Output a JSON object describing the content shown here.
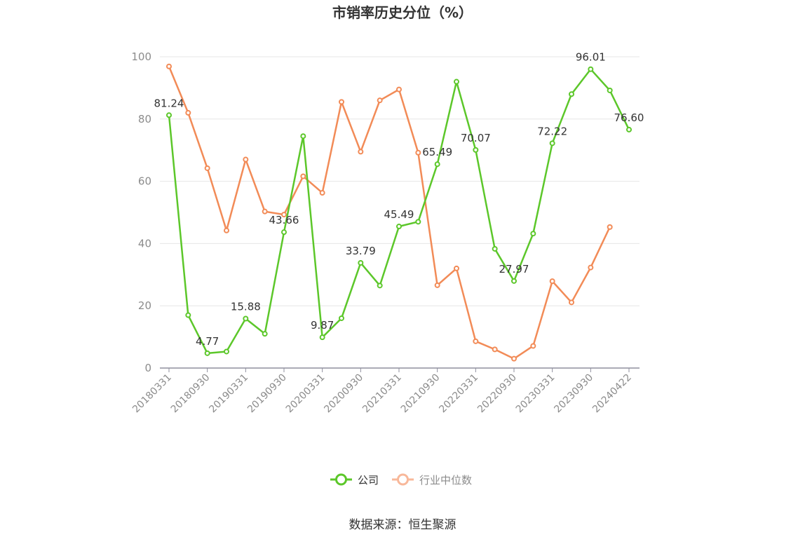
{
  "chart_data": {
    "type": "line",
    "title": "市销率历史分位（%）",
    "xlabel": "",
    "ylabel": "",
    "ylim": [
      0,
      100
    ],
    "yticks": [
      "0",
      "20",
      "40",
      "60",
      "80",
      "100"
    ],
    "categories": [
      "20180331",
      "20180630",
      "20180930",
      "20181231",
      "20190331",
      "20190630",
      "20190930",
      "20191231",
      "20200331",
      "20200630",
      "20200930",
      "20201231",
      "20210331",
      "20210630",
      "20210930",
      "20211231",
      "20220331",
      "20220630",
      "20220930",
      "20221231",
      "20230331",
      "20230630",
      "20230930",
      "20231231",
      "20240422"
    ],
    "xtick_labels": [
      "20180331",
      "20180930",
      "20190331",
      "20190930",
      "20200331",
      "20200930",
      "20210331",
      "20210930",
      "20220331",
      "20220930",
      "20230331",
      "20230930",
      "20240422"
    ],
    "series": [
      {
        "name": "公司",
        "color": "#5cc72a",
        "values": [
          81.24,
          17.0,
          4.77,
          5.3,
          15.88,
          11.0,
          43.66,
          74.5,
          9.87,
          16.0,
          33.79,
          26.5,
          45.49,
          47.0,
          65.49,
          92.0,
          70.07,
          38.3,
          27.97,
          43.2,
          72.22,
          88.0,
          96.01,
          89.2,
          76.6
        ],
        "data_labels": {
          "0": "81.24",
          "2": "4.77",
          "4": "15.88",
          "6": "43.66",
          "8": "9.87",
          "10": "33.79",
          "12": "45.49",
          "14": "65.49",
          "16": "70.07",
          "18": "27.97",
          "20": "72.22",
          "22": "96.01",
          "24": "76.60"
        }
      },
      {
        "name": "行业中位数",
        "color": "#f28b57",
        "values": [
          96.9,
          82.0,
          64.2,
          44.2,
          67.0,
          50.3,
          49.3,
          61.6,
          56.3,
          85.5,
          69.5,
          86.0,
          89.5,
          69.2,
          26.6,
          32.0,
          8.6,
          6.0,
          3.0,
          7.1,
          27.9,
          21.1,
          32.3,
          45.3,
          null
        ]
      }
    ],
    "legend": {
      "position": "bottom",
      "items": [
        "公司",
        "行业中位数"
      ]
    },
    "grid": true
  },
  "source_text": "数据来源：恒生聚源"
}
